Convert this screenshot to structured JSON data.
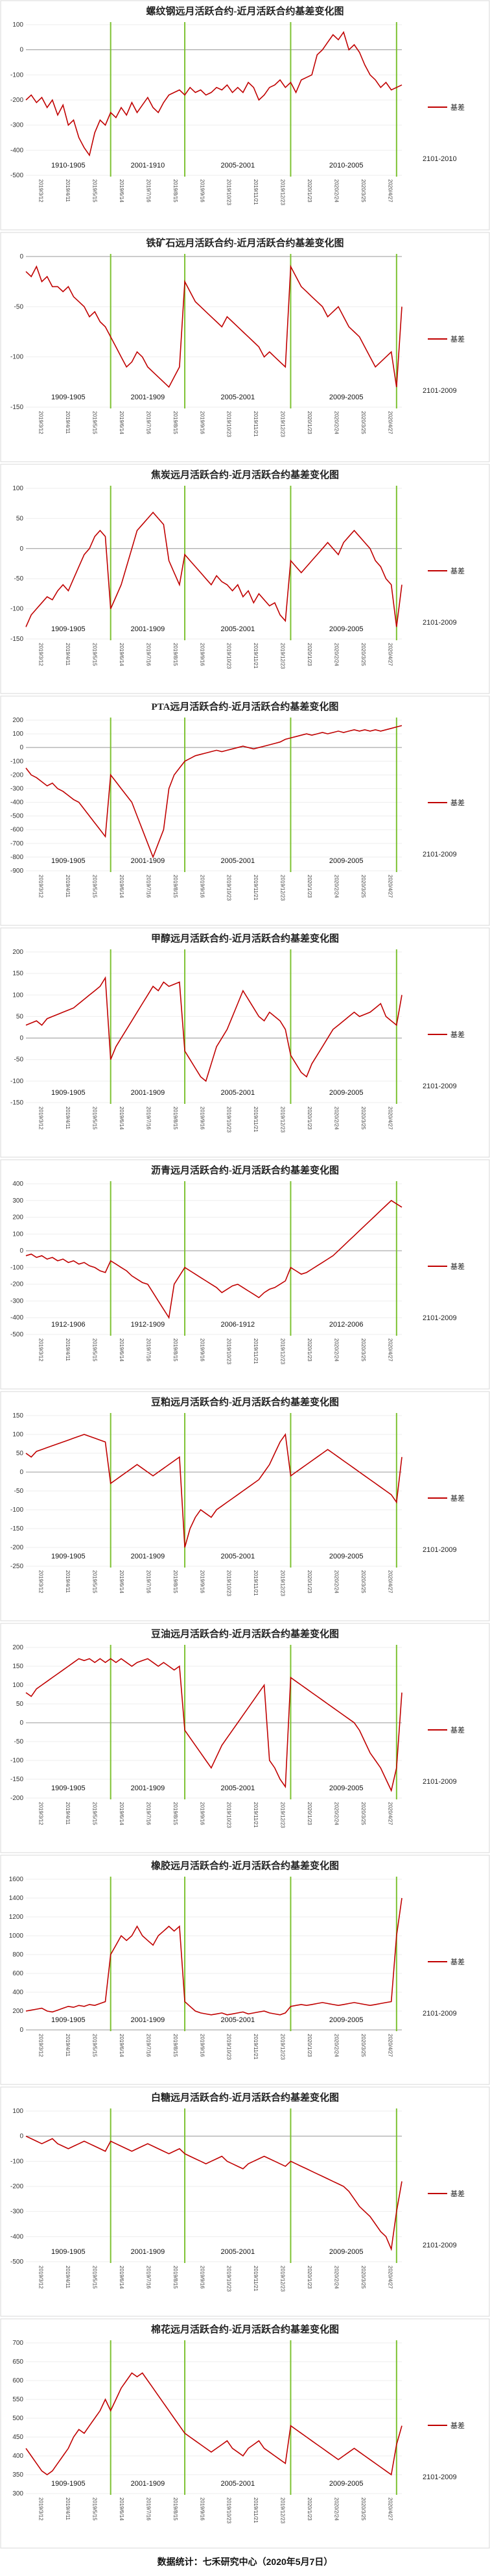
{
  "footer": "数据统计：七禾研究中心（2020年5月7日）",
  "legend_color": "#c00000",
  "divider_color": "#7dc232",
  "x_tick_labels": [
    "2019/3/12",
    "2019/4/11",
    "2019/5/15",
    "2019/6/14",
    "2019/7/16",
    "2019/8/15",
    "2019/9/16",
    "2019/10/23",
    "2019/11/21",
    "2019/12/23",
    "2020/1/23",
    "2020/2/24",
    "2020/3/25",
    "2020/4/27"
  ],
  "chart_data": [
    {
      "type": "line",
      "title": "螺纹钢远月活跃合约-近月活跃合约基差变化图",
      "ylim": [
        -500,
        100
      ],
      "yticks": [
        100,
        0,
        -100,
        -200,
        -300,
        -400,
        -500
      ],
      "legend": "基差",
      "note": "2101-2010",
      "segments": [
        "1910-1905",
        "2001-1910",
        "2005-2001",
        "2010-2005"
      ],
      "series": [
        {
          "name": "基差",
          "values": [
            -200,
            -180,
            -210,
            -190,
            -230,
            -200,
            -260,
            -220,
            -300,
            -280,
            -350,
            -390,
            -420,
            -330,
            -280,
            -300,
            -250,
            -270,
            -230,
            -260,
            -210,
            -250,
            -220,
            -190,
            -230,
            -250,
            -210,
            -180,
            -170,
            -160,
            -180,
            -150,
            -170,
            -160,
            -180,
            -170,
            -150,
            -160,
            -140,
            -170,
            -150,
            -170,
            -130,
            -150,
            -200,
            -180,
            -150,
            -140,
            -120,
            -150,
            -130,
            -170,
            -120,
            -110,
            -100,
            -20,
            0,
            30,
            60,
            40,
            70,
            0,
            20,
            -10,
            -60,
            -100,
            -120,
            -150,
            -130,
            -160,
            -150,
            -140
          ]
        }
      ]
    },
    {
      "type": "line",
      "title": "铁矿石远月活跃合约-近月活跃合约基差变化图",
      "ylim": [
        -150,
        0
      ],
      "yticks": [
        0,
        -50,
        -100,
        -150
      ],
      "legend": "基差",
      "note": "2101-2009",
      "segments": [
        "1909-1905",
        "2001-1909",
        "2005-2001",
        "2009-2005"
      ],
      "series": [
        {
          "name": "基差",
          "values": [
            -15,
            -20,
            -10,
            -25,
            -20,
            -30,
            -30,
            -35,
            -30,
            -40,
            -45,
            -50,
            -60,
            -55,
            -65,
            -70,
            -80,
            -90,
            -100,
            -110,
            -105,
            -95,
            -100,
            -110,
            -115,
            -120,
            -125,
            -130,
            -120,
            -110,
            -25,
            -35,
            -45,
            -50,
            -55,
            -60,
            -65,
            -70,
            -60,
            -65,
            -70,
            -75,
            -80,
            -85,
            -90,
            -100,
            -95,
            -100,
            -105,
            -110,
            -10,
            -20,
            -30,
            -35,
            -40,
            -45,
            -50,
            -60,
            -55,
            -50,
            -60,
            -70,
            -75,
            -80,
            -90,
            -100,
            -110,
            -105,
            -100,
            -95,
            -130,
            -50
          ]
        }
      ]
    },
    {
      "type": "line",
      "title": "焦炭远月活跃合约-近月活跃合约基差变化图",
      "ylim": [
        -150,
        100
      ],
      "yticks": [
        100,
        50,
        0,
        -50,
        -100,
        -150
      ],
      "legend": "基差",
      "note": "2101-2009",
      "segments": [
        "1909-1905",
        "2001-1909",
        "2005-2001",
        "2009-2005"
      ],
      "series": [
        {
          "name": "基差",
          "values": [
            -130,
            -110,
            -100,
            -90,
            -80,
            -85,
            -70,
            -60,
            -70,
            -50,
            -30,
            -10,
            0,
            20,
            30,
            20,
            -100,
            -80,
            -60,
            -30,
            0,
            30,
            40,
            50,
            60,
            50,
            40,
            -20,
            -40,
            -60,
            -10,
            -20,
            -30,
            -40,
            -50,
            -60,
            -45,
            -55,
            -60,
            -70,
            -60,
            -80,
            -70,
            -90,
            -75,
            -85,
            -95,
            -90,
            -110,
            -120,
            -20,
            -30,
            -40,
            -30,
            -20,
            -10,
            0,
            10,
            0,
            -10,
            10,
            20,
            30,
            20,
            10,
            0,
            -20,
            -30,
            -50,
            -60,
            -130,
            -60
          ]
        }
      ]
    },
    {
      "type": "line",
      "title": "PTA远月活跃合约-近月活跃合约基差变化图",
      "ylim": [
        -900,
        200
      ],
      "yticks": [
        200,
        100,
        0,
        -100,
        -200,
        -300,
        -400,
        -500,
        -600,
        -700,
        -800,
        -900
      ],
      "legend": "基差",
      "note": "2101-2009",
      "segments": [
        "1909-1905",
        "2001-1909",
        "2005-2001",
        "2009-2005"
      ],
      "series": [
        {
          "name": "基差",
          "values": [
            -150,
            -200,
            -220,
            -250,
            -280,
            -260,
            -300,
            -320,
            -350,
            -380,
            -400,
            -450,
            -500,
            -550,
            -600,
            -650,
            -200,
            -250,
            -300,
            -350,
            -400,
            -500,
            -600,
            -700,
            -800,
            -700,
            -600,
            -300,
            -200,
            -150,
            -100,
            -80,
            -60,
            -50,
            -40,
            -30,
            -20,
            -30,
            -20,
            -10,
            0,
            10,
            0,
            -10,
            0,
            10,
            20,
            30,
            40,
            60,
            70,
            80,
            90,
            100,
            90,
            100,
            110,
            100,
            110,
            120,
            110,
            120,
            130,
            120,
            130,
            120,
            130,
            120,
            130,
            140,
            150,
            160
          ]
        }
      ]
    },
    {
      "type": "line",
      "title": "甲醇远月活跃合约-近月活跃合约基差变化图",
      "ylim": [
        -150,
        200
      ],
      "yticks": [
        200,
        150,
        100,
        50,
        0,
        -50,
        -100,
        -150
      ],
      "legend": "基差",
      "note": "2101-2009",
      "segments": [
        "1909-1905",
        "2001-1909",
        "2005-2001",
        "2009-2005"
      ],
      "series": [
        {
          "name": "基差",
          "values": [
            30,
            35,
            40,
            30,
            45,
            50,
            55,
            60,
            65,
            70,
            80,
            90,
            100,
            110,
            120,
            140,
            -50,
            -20,
            0,
            20,
            40,
            60,
            80,
            100,
            120,
            110,
            130,
            120,
            125,
            130,
            -30,
            -50,
            -70,
            -90,
            -100,
            -60,
            -20,
            0,
            20,
            50,
            80,
            110,
            90,
            70,
            50,
            40,
            60,
            50,
            40,
            20,
            -40,
            -60,
            -80,
            -90,
            -60,
            -40,
            -20,
            0,
            20,
            30,
            40,
            50,
            60,
            50,
            55,
            60,
            70,
            80,
            50,
            40,
            30,
            100
          ]
        }
      ]
    },
    {
      "type": "line",
      "title": "沥青远月活跃合约-近月活跃合约基差变化图",
      "ylim": [
        -500,
        400
      ],
      "yticks": [
        400,
        300,
        200,
        100,
        0,
        -100,
        -200,
        -300,
        -400,
        -500
      ],
      "legend": "基差",
      "note": "2101-2009",
      "segments": [
        "1912-1906",
        "1912-1909",
        "2006-1912",
        "2012-2006"
      ],
      "series": [
        {
          "name": "基差",
          "values": [
            -30,
            -20,
            -40,
            -30,
            -50,
            -40,
            -60,
            -50,
            -70,
            -60,
            -80,
            -70,
            -90,
            -100,
            -120,
            -130,
            -60,
            -80,
            -100,
            -120,
            -150,
            -170,
            -190,
            -200,
            -250,
            -300,
            -350,
            -400,
            -200,
            -150,
            -100,
            -120,
            -140,
            -160,
            -180,
            -200,
            -220,
            -250,
            -230,
            -210,
            -200,
            -220,
            -240,
            -260,
            -280,
            -250,
            -230,
            -220,
            -200,
            -180,
            -100,
            -120,
            -140,
            -130,
            -110,
            -90,
            -70,
            -50,
            -30,
            0,
            30,
            60,
            90,
            120,
            150,
            180,
            210,
            240,
            270,
            300,
            280,
            260
          ]
        }
      ]
    },
    {
      "type": "line",
      "title": "豆粕远月活跃合约-近月活跃合约基差变化图",
      "ylim": [
        -250,
        150
      ],
      "yticks": [
        150,
        100,
        50,
        0,
        -50,
        -100,
        -150,
        -200,
        -250
      ],
      "legend": "基差",
      "note": "2101-2009",
      "segments": [
        "1909-1905",
        "2001-1909",
        "2005-2001",
        "2009-2005"
      ],
      "series": [
        {
          "name": "基差",
          "values": [
            50,
            40,
            55,
            60,
            65,
            70,
            75,
            80,
            85,
            90,
            95,
            100,
            95,
            90,
            85,
            80,
            -30,
            -20,
            -10,
            0,
            10,
            20,
            10,
            0,
            -10,
            0,
            10,
            20,
            30,
            40,
            -200,
            -150,
            -120,
            -100,
            -110,
            -120,
            -100,
            -90,
            -80,
            -70,
            -60,
            -50,
            -40,
            -30,
            -20,
            0,
            20,
            50,
            80,
            100,
            -10,
            0,
            10,
            20,
            30,
            40,
            50,
            60,
            50,
            40,
            30,
            20,
            10,
            0,
            -10,
            -20,
            -30,
            -40,
            -50,
            -60,
            -80,
            40
          ]
        }
      ]
    },
    {
      "type": "line",
      "title": "豆油远月活跃合约-近月活跃合约基差变化图",
      "ylim": [
        -200,
        200
      ],
      "yticks": [
        200,
        150,
        100,
        50,
        0,
        -50,
        -100,
        -150,
        -200
      ],
      "legend": "基差",
      "note": "2101-2009",
      "segments": [
        "1909-1905",
        "2001-1909",
        "2005-2001",
        "2009-2005"
      ],
      "series": [
        {
          "name": "基差",
          "values": [
            80,
            70,
            90,
            100,
            110,
            120,
            130,
            140,
            150,
            160,
            170,
            165,
            170,
            160,
            170,
            160,
            170,
            160,
            170,
            160,
            150,
            160,
            165,
            170,
            160,
            150,
            160,
            150,
            140,
            150,
            -20,
            -40,
            -60,
            -80,
            -100,
            -120,
            -90,
            -60,
            -40,
            -20,
            0,
            20,
            40,
            60,
            80,
            100,
            -100,
            -120,
            -150,
            -170,
            120,
            110,
            100,
            90,
            80,
            70,
            60,
            50,
            40,
            30,
            20,
            10,
            0,
            -20,
            -50,
            -80,
            -100,
            -120,
            -150,
            -180,
            -120,
            80
          ]
        }
      ]
    },
    {
      "type": "line",
      "title": "橡胶远月活跃合约-近月活跃合约基差变化图",
      "ylim": [
        0,
        1600
      ],
      "yticks": [
        1600,
        1400,
        1200,
        1000,
        800,
        600,
        400,
        200,
        0
      ],
      "legend": "基差",
      "note": "2101-2009",
      "segments": [
        "1909-1905",
        "2001-1909",
        "2005-2001",
        "2009-2005"
      ],
      "series": [
        {
          "name": "基差",
          "values": [
            200,
            210,
            220,
            230,
            200,
            190,
            210,
            230,
            250,
            240,
            260,
            250,
            270,
            260,
            280,
            300,
            800,
            900,
            1000,
            950,
            1000,
            1100,
            1000,
            950,
            900,
            1000,
            1050,
            1100,
            1050,
            1100,
            300,
            250,
            200,
            180,
            170,
            160,
            170,
            180,
            160,
            170,
            180,
            190,
            170,
            180,
            190,
            200,
            180,
            170,
            160,
            180,
            250,
            260,
            270,
            260,
            270,
            280,
            290,
            280,
            270,
            260,
            270,
            280,
            290,
            280,
            270,
            260,
            270,
            280,
            290,
            300,
            1000,
            1400
          ]
        }
      ]
    },
    {
      "type": "line",
      "title": "白糖远月活跃合约-近月活跃合约基差变化图",
      "ylim": [
        -500,
        100
      ],
      "yticks": [
        100,
        0,
        -100,
        -200,
        -300,
        -400,
        -500
      ],
      "legend": "基差",
      "note": "2101-2009",
      "segments": [
        "1909-1905",
        "2001-1909",
        "2005-2001",
        "2009-2005"
      ],
      "series": [
        {
          "name": "基差",
          "values": [
            0,
            -10,
            -20,
            -30,
            -20,
            -10,
            -30,
            -40,
            -50,
            -40,
            -30,
            -20,
            -30,
            -40,
            -50,
            -60,
            -20,
            -30,
            -40,
            -50,
            -60,
            -50,
            -40,
            -30,
            -40,
            -50,
            -60,
            -70,
            -60,
            -50,
            -70,
            -80,
            -90,
            -100,
            -110,
            -100,
            -90,
            -80,
            -100,
            -110,
            -120,
            -130,
            -110,
            -100,
            -90,
            -80,
            -90,
            -100,
            -110,
            -120,
            -100,
            -110,
            -120,
            -130,
            -140,
            -150,
            -160,
            -170,
            -180,
            -190,
            -200,
            -220,
            -250,
            -280,
            -300,
            -320,
            -350,
            -380,
            -400,
            -450,
            -300,
            -180
          ]
        }
      ]
    },
    {
      "type": "line",
      "title": "棉花远月活跃合约-近月活跃合约基差变化图",
      "ylim": [
        300,
        700
      ],
      "yticks": [
        700,
        650,
        600,
        550,
        500,
        450,
        400,
        350,
        300
      ],
      "legend": "基差",
      "note": "2101-2009",
      "segments": [
        "1909-1905",
        "2001-1909",
        "2005-2001",
        "2009-2005"
      ],
      "series": [
        {
          "name": "基差",
          "values": [
            420,
            400,
            380,
            360,
            350,
            360,
            380,
            400,
            420,
            450,
            470,
            460,
            480,
            500,
            520,
            550,
            520,
            550,
            580,
            600,
            620,
            610,
            620,
            600,
            580,
            560,
            540,
            520,
            500,
            480,
            460,
            450,
            440,
            430,
            420,
            410,
            420,
            430,
            440,
            420,
            410,
            400,
            420,
            430,
            440,
            420,
            410,
            400,
            390,
            380,
            480,
            470,
            460,
            450,
            440,
            430,
            420,
            410,
            400,
            390,
            400,
            410,
            420,
            410,
            400,
            390,
            380,
            370,
            360,
            350,
            430,
            480
          ]
        }
      ]
    }
  ]
}
